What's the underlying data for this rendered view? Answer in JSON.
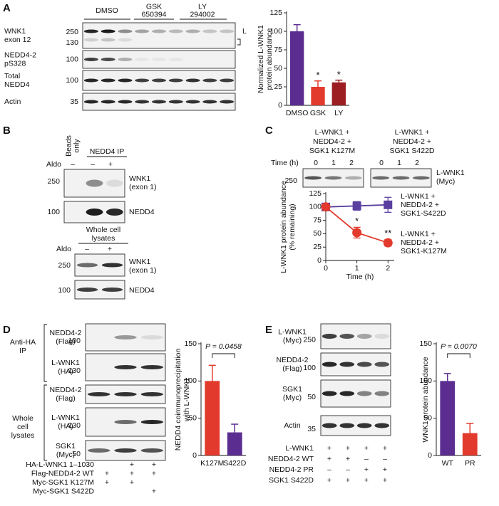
{
  "figure": {
    "panel_labels": [
      "A",
      "B",
      "C",
      "D",
      "E"
    ],
    "A": {
      "conditions": [
        "DMSO",
        "GSK\n650394",
        "LY\n294002"
      ],
      "rows": [
        {
          "label": "WNK1\nexon 12",
          "markers": [
            250,
            130
          ]
        },
        {
          "label": "NEDD4-2\npS328",
          "markers": [
            100
          ]
        },
        {
          "label": "Total\nNEDD4",
          "markers": [
            100
          ]
        },
        {
          "label": "Actin",
          "markers": [
            35
          ]
        }
      ],
      "band_label": "L"
    },
    "B": {
      "lanes": [
        "Beads\nonly",
        "NEDD4 IP"
      ],
      "aldo": "Aldo",
      "ip_signs": [
        "–",
        "–",
        "+"
      ],
      "ip_rows": [
        {
          "label": "WNK1\n(exon 1)",
          "markers": [
            250
          ]
        },
        {
          "label": "NEDD4",
          "markers": [
            100
          ]
        }
      ],
      "lysate_title": "Whole cell\nlysates",
      "lysate_signs": [
        "–",
        "+"
      ],
      "lysate_rows": [
        {
          "label": "WNK1\n(exon 1)",
          "markers": [
            250
          ]
        },
        {
          "label": "NEDD4",
          "markers": [
            100
          ]
        }
      ]
    },
    "C": {
      "conditions": [
        "L-WNK1 +\nNEDD4-2 +\nSGK1 K127M",
        "L-WNK1 +\nNEDD4-2 +\nSGK1 S422D"
      ],
      "time_label": "Time (h)",
      "times": [
        0,
        1,
        2
      ],
      "row": {
        "label": "L-WNK1\n(Myc)",
        "markers": [
          250
        ]
      }
    },
    "D": {
      "groups": [
        "Anti-HA\nIP",
        "Whole\ncell\nlysates"
      ],
      "rows": [
        {
          "label": "NEDD4-2\n(Flag)",
          "markers": [
            100
          ]
        },
        {
          "label": "L-WNK1\n(HA)",
          "markers": [
            130
          ]
        },
        {
          "label": "NEDD4-2\n(Flag)",
          "markers": []
        },
        {
          "label": "L-WNK1\n(HA)",
          "markers": [
            130
          ]
        },
        {
          "label": "SGK1\n(Myc)",
          "markers": [
            50
          ]
        }
      ],
      "treatments": [
        {
          "label": "HA-L-WNK1 1–1030",
          "signs": [
            null,
            "+",
            "+"
          ]
        },
        {
          "label": "Flag-NEDD4-2 WT",
          "signs": [
            "+",
            "+",
            "+"
          ]
        },
        {
          "label": "Myc-SGK1 K127M",
          "signs": [
            "+",
            "+",
            null
          ]
        },
        {
          "label": "Myc-SGK1 S422D",
          "signs": [
            null,
            null,
            "+"
          ]
        }
      ]
    },
    "E": {
      "rows": [
        {
          "label": "L-WNK1\n(Myc)",
          "markers": [
            250
          ]
        },
        {
          "label": "NEDD4-2\n(Flag)",
          "markers": [
            100
          ]
        },
        {
          "label": "SGK1\n(Myc)",
          "markers": [
            50
          ]
        },
        {
          "label": "Actin",
          "markers": [
            35
          ]
        }
      ],
      "treatments": [
        {
          "label": "L-WNK1",
          "signs": [
            "+",
            "+",
            "+",
            "+"
          ]
        },
        {
          "label": "NEDD4-2 WT",
          "signs": [
            "+",
            "+",
            "–",
            "–"
          ]
        },
        {
          "label": "NEDD4-2 PR",
          "signs": [
            "–",
            "–",
            "+",
            "+"
          ]
        },
        {
          "label": "SGK1 S422D",
          "signs": [
            "+",
            "+",
            "+",
            "+"
          ]
        }
      ]
    }
  },
  "chart_data": [
    {
      "type": "bar",
      "ylabel": "Normalized L-WNK1\nprotein abundance",
      "categories": [
        "DMSO",
        "GSK",
        "LY"
      ],
      "values": [
        100,
        25,
        31
      ],
      "errors": [
        9,
        8,
        3
      ],
      "colors": [
        "#5b2d91",
        "#e23a2c",
        "#9c1e22"
      ],
      "significance": [
        null,
        "*",
        "*"
      ],
      "ylim": [
        0,
        125
      ],
      "yticks": [
        0,
        25,
        50,
        75,
        100,
        125
      ]
    },
    {
      "type": "line",
      "xlabel": "Time (h)",
      "ylabel": "L-WNK1 protein abundance\n(% remaining)",
      "x": [
        0,
        1,
        2
      ],
      "xlim": [
        0,
        2.2
      ],
      "xticks": [
        0,
        1,
        2
      ],
      "ylim": [
        0,
        125
      ],
      "yticks": [
        0,
        25,
        50,
        75,
        100,
        125
      ],
      "series": [
        {
          "name": "L-WNK1 +\nNEDD4-2 +\nSGK1-S422D",
          "color": "#5b3fa0",
          "marker": "square",
          "values": [
            100,
            102,
            104
          ],
          "errors": [
            0,
            8,
            14
          ],
          "significance": [
            null,
            null,
            null
          ]
        },
        {
          "name": "L-WNK1 +\nNEDD4-2 +\nSGK1-K127M",
          "color": "#e23a2c",
          "marker": "circle",
          "values": [
            100,
            52,
            33
          ],
          "errors": [
            0,
            10,
            6
          ],
          "significance": [
            null,
            "*",
            "**"
          ]
        }
      ]
    },
    {
      "type": "bar",
      "ylabel": "NEDD4 coimmunoprecipitation\nwith L-WNK1",
      "categories": [
        "K127M",
        "S422D"
      ],
      "values": [
        100,
        31
      ],
      "errors": [
        21,
        11
      ],
      "colors": [
        "#e23a2c",
        "#5b2d91"
      ],
      "comparison": "P = 0.0458",
      "ylim": [
        0,
        150
      ],
      "yticks": [
        0,
        50,
        100,
        150
      ]
    },
    {
      "type": "bar",
      "ylabel": "WNK1 protein abundance",
      "categories": [
        "WT",
        "PR"
      ],
      "values": [
        100,
        30
      ],
      "errors": [
        10,
        13
      ],
      "colors": [
        "#5b2d91",
        "#e23a2c"
      ],
      "comparison": "P = 0.0070",
      "ylim": [
        0,
        150
      ],
      "yticks": [
        0,
        50,
        100,
        150
      ]
    }
  ]
}
